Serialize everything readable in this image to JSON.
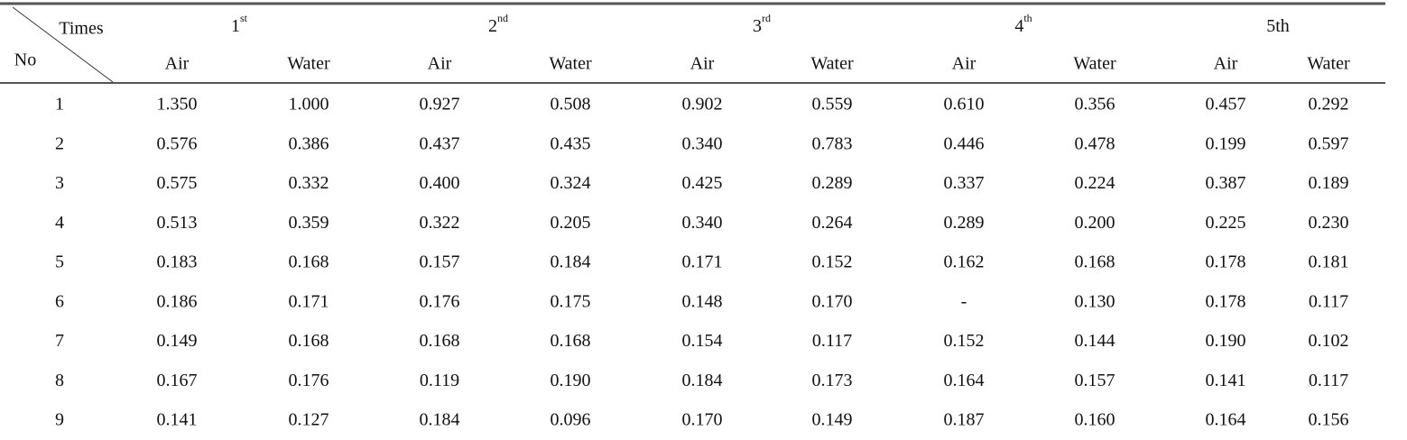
{
  "table": {
    "corner": {
      "top": "Times",
      "bottom": "No"
    },
    "groups": [
      {
        "text": "1",
        "sup": "st"
      },
      {
        "text": "2",
        "sup": "nd"
      },
      {
        "text": "3",
        "sup": "rd"
      },
      {
        "text": "4",
        "sup": "th"
      },
      {
        "text": "5th"
      }
    ],
    "subheaders": [
      "Air",
      "Water",
      "Air",
      "Water",
      "Air",
      "Water",
      "Air",
      "Water",
      "Air",
      "Water"
    ],
    "rows": [
      [
        "1",
        "1.350",
        "1.000",
        "0.927",
        "0.508",
        "0.902",
        "0.559",
        "0.610",
        "0.356",
        "0.457",
        "0.292"
      ],
      [
        "2",
        "0.576",
        "0.386",
        "0.437",
        "0.435",
        "0.340",
        "0.783",
        "0.446",
        "0.478",
        "0.199",
        "0.597"
      ],
      [
        "3",
        "0.575",
        "0.332",
        "0.400",
        "0.324",
        "0.425",
        "0.289",
        "0.337",
        "0.224",
        "0.387",
        "0.189"
      ],
      [
        "4",
        "0.513",
        "0.359",
        "0.322",
        "0.205",
        "0.340",
        "0.264",
        "0.289",
        "0.200",
        "0.225",
        "0.230"
      ],
      [
        "5",
        "0.183",
        "0.168",
        "0.157",
        "0.184",
        "0.171",
        "0.152",
        "0.162",
        "0.168",
        "0.178",
        "0.181"
      ],
      [
        "6",
        "0.186",
        "0.171",
        "0.176",
        "0.175",
        "0.148",
        "0.170",
        "-",
        "0.130",
        "0.178",
        "0.117"
      ],
      [
        "7",
        "0.149",
        "0.168",
        "0.168",
        "0.168",
        "0.154",
        "0.117",
        "0.152",
        "0.144",
        "0.190",
        "0.102"
      ],
      [
        "8",
        "0.167",
        "0.176",
        "0.119",
        "0.190",
        "0.184",
        "0.173",
        "0.164",
        "0.157",
        "0.141",
        "0.117"
      ],
      [
        "9",
        "0.141",
        "0.127",
        "0.184",
        "0.096",
        "0.170",
        "0.149",
        "0.187",
        "0.160",
        "0.164",
        "0.156"
      ]
    ]
  }
}
